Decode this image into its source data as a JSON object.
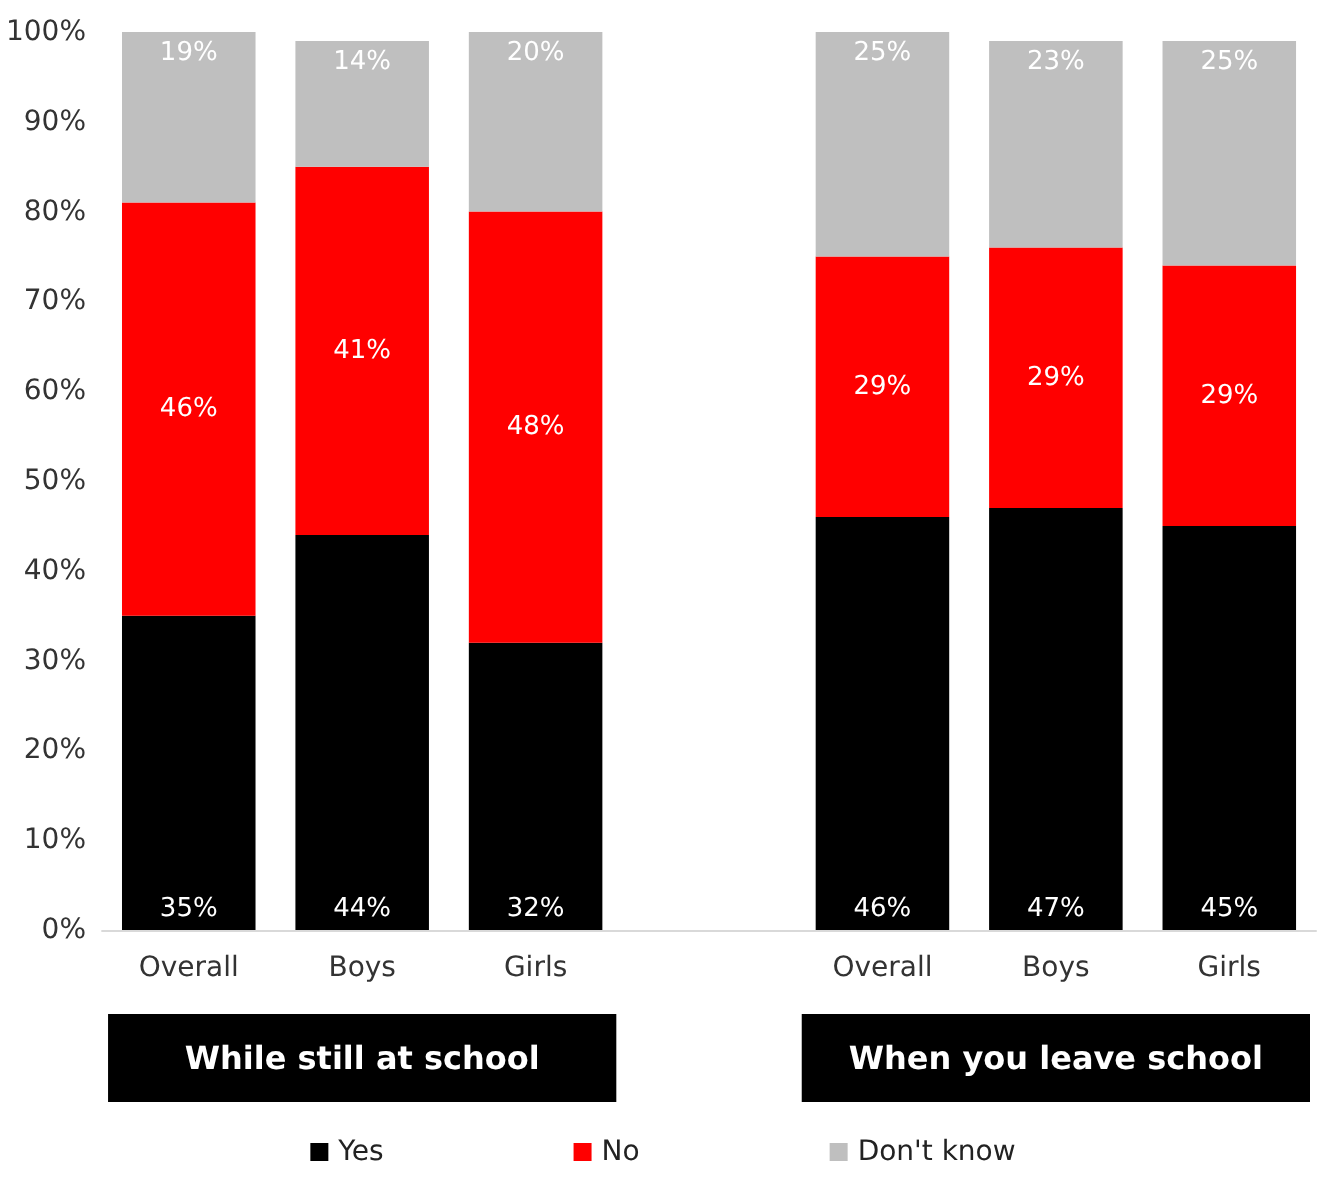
{
  "chart_data": {
    "type": "bar",
    "stacked": true,
    "categories": [
      "Overall",
      "Boys",
      "Girls",
      null,
      "Overall",
      "Boys",
      "Girls"
    ],
    "series": [
      {
        "name": "Yes",
        "color": "#000000",
        "values": [
          35,
          44,
          32,
          null,
          46,
          47,
          45
        ],
        "value_labels": [
          "35%",
          "44%",
          "32%",
          null,
          "46%",
          "47%",
          "45%"
        ]
      },
      {
        "name": "No",
        "color": "#ff0000",
        "values": [
          46,
          41,
          48,
          null,
          29,
          29,
          29
        ],
        "value_labels": [
          "46%",
          "41%",
          "48%",
          null,
          "29%",
          "29%",
          "29%"
        ]
      },
      {
        "name": "Don't know",
        "color": "#bfbfbf",
        "values": [
          19,
          14,
          20,
          null,
          25,
          23,
          25
        ],
        "value_labels": [
          "19%",
          "14%",
          "20%",
          null,
          "25%",
          "23%",
          "25%"
        ]
      }
    ],
    "ylim": [
      0,
      100
    ],
    "yticks": [
      {
        "value": 0,
        "label": "0%"
      },
      {
        "value": 10,
        "label": "10%"
      },
      {
        "value": 20,
        "label": "20%"
      },
      {
        "value": 30,
        "label": "30%"
      },
      {
        "value": 40,
        "label": "40%"
      },
      {
        "value": 50,
        "label": "50%"
      },
      {
        "value": 60,
        "label": "60%"
      },
      {
        "value": 70,
        "label": "70%"
      },
      {
        "value": 80,
        "label": "80%"
      },
      {
        "value": 90,
        "label": "90%"
      },
      {
        "value": 100,
        "label": "100%"
      }
    ],
    "annotations": [
      "While still at school",
      "When you leave school"
    ],
    "grid": false,
    "legend": "bottom"
  }
}
